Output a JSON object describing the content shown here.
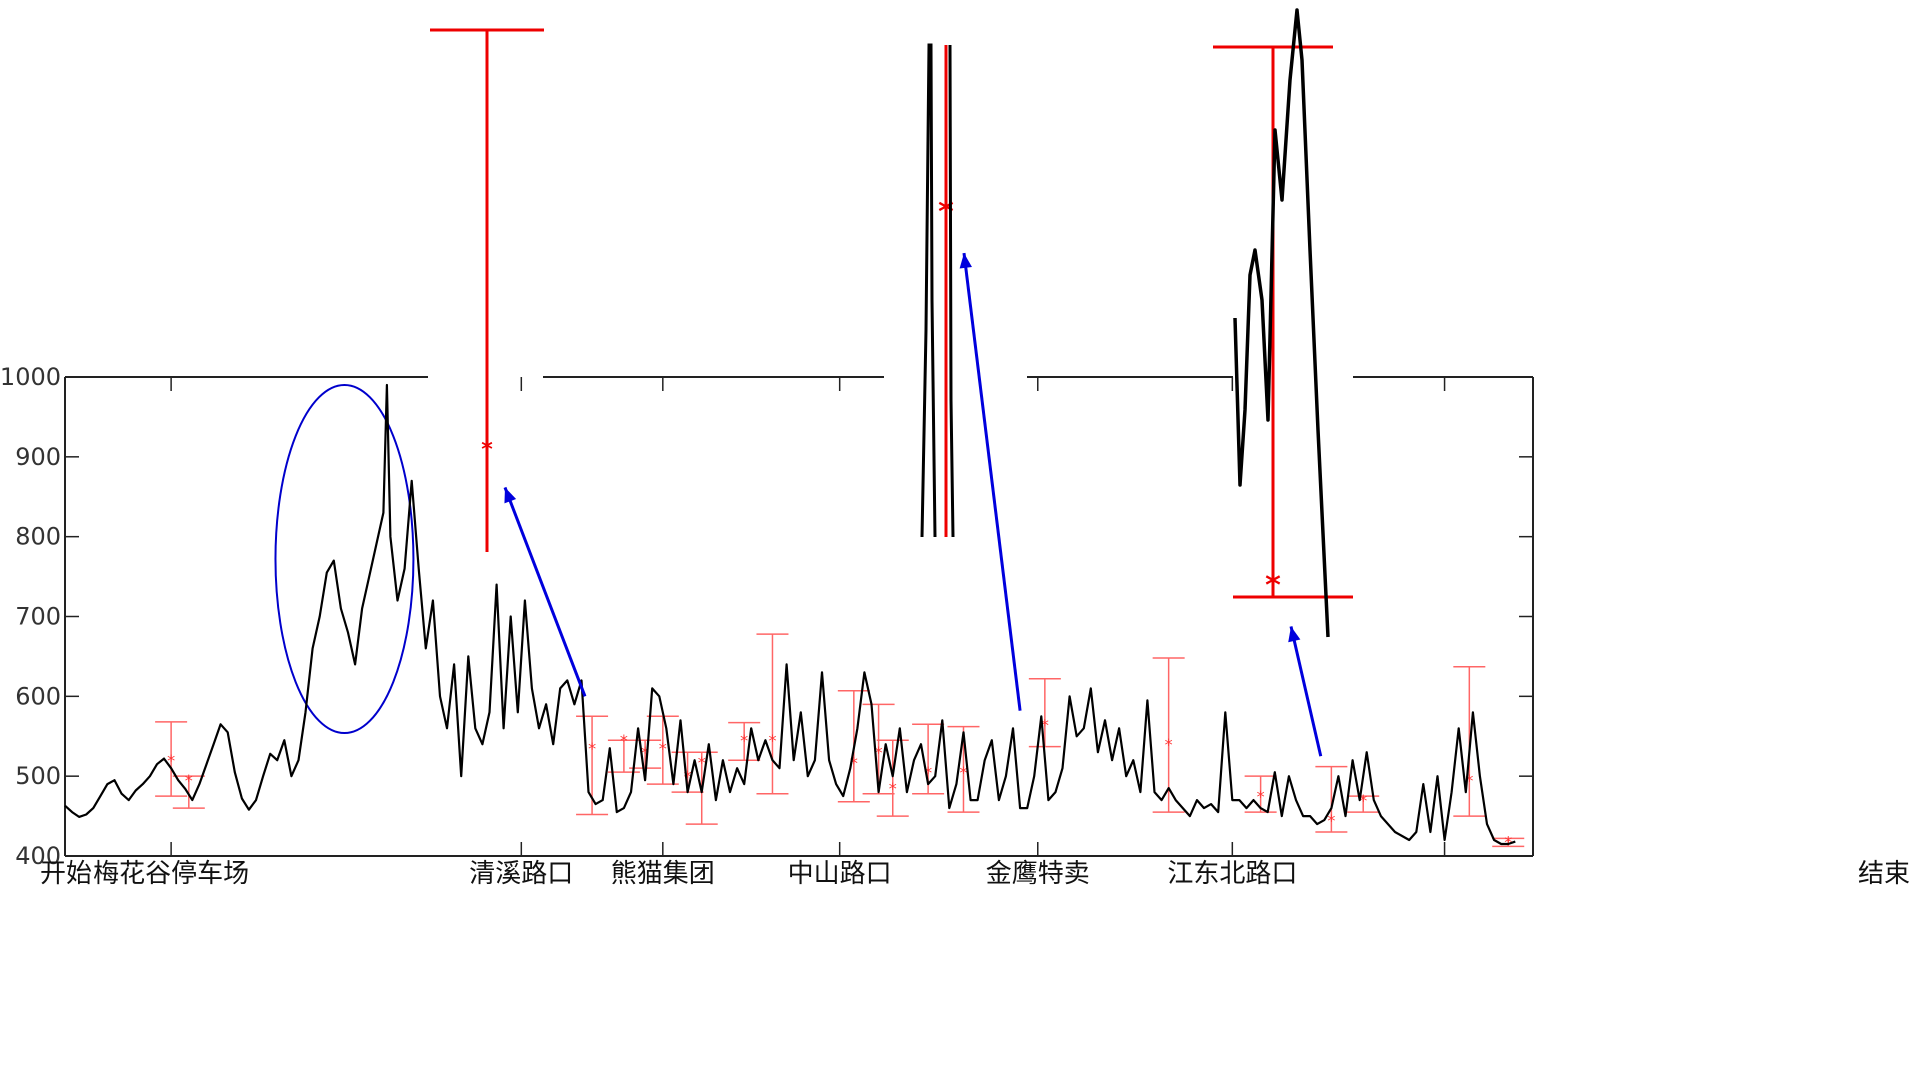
{
  "chart_data": {
    "type": "line",
    "title": "",
    "xlabel": "",
    "ylabel": "",
    "ylim": [
      400,
      1000
    ],
    "yticks": [
      "400",
      "500",
      "600",
      "700",
      "800",
      "900",
      "1000"
    ],
    "categories": [
      "开始",
      "梅花谷停车场",
      "清溪路口",
      "熊猫集团",
      "中山路口",
      "金鹰特卖",
      "江东北路口",
      "结束"
    ],
    "grid": false,
    "series": [
      {
        "name": "",
        "color": "#000000",
        "points": [
          [
            0,
            463
          ],
          [
            0.2,
            455
          ],
          [
            0.4,
            449
          ],
          [
            0.6,
            452
          ],
          [
            0.8,
            460
          ],
          [
            1.0,
            475
          ],
          [
            1.2,
            490
          ],
          [
            1.4,
            495
          ],
          [
            1.6,
            478
          ],
          [
            1.8,
            470
          ],
          [
            2.0,
            482
          ],
          [
            2.2,
            490
          ],
          [
            2.4,
            500
          ],
          [
            2.6,
            515
          ],
          [
            2.8,
            522
          ],
          [
            3.0,
            510
          ],
          [
            3.2,
            495
          ],
          [
            3.4,
            484
          ],
          [
            3.6,
            470
          ],
          [
            3.8,
            490
          ],
          [
            4.0,
            515
          ],
          [
            4.2,
            540
          ],
          [
            4.4,
            565
          ],
          [
            4.6,
            555
          ],
          [
            4.8,
            505
          ],
          [
            5.0,
            472
          ],
          [
            5.2,
            458
          ],
          [
            5.4,
            470
          ],
          [
            5.6,
            500
          ],
          [
            5.8,
            528
          ],
          [
            6.0,
            520
          ],
          [
            6.2,
            545
          ],
          [
            6.4,
            500
          ],
          [
            6.6,
            520
          ],
          [
            6.8,
            580
          ],
          [
            7.0,
            660
          ],
          [
            7.2,
            700
          ],
          [
            7.4,
            755
          ],
          [
            7.6,
            770
          ],
          [
            7.8,
            710
          ],
          [
            8.0,
            680
          ],
          [
            8.2,
            640
          ],
          [
            8.4,
            710
          ],
          [
            8.6,
            750
          ],
          [
            8.8,
            790
          ],
          [
            9.0,
            830
          ],
          [
            9.1,
            990
          ],
          [
            9.2,
            800
          ],
          [
            9.4,
            720
          ],
          [
            9.6,
            760
          ],
          [
            9.8,
            870
          ],
          [
            10.0,
            760
          ],
          [
            10.2,
            660
          ],
          [
            10.4,
            720
          ],
          [
            10.6,
            600
          ],
          [
            10.8,
            560
          ],
          [
            11.0,
            640
          ],
          [
            11.2,
            500
          ],
          [
            11.4,
            650
          ],
          [
            11.6,
            560
          ],
          [
            11.8,
            540
          ],
          [
            12.0,
            580
          ],
          [
            12.2,
            740
          ],
          [
            12.4,
            560
          ],
          [
            12.6,
            700
          ],
          [
            12.8,
            580
          ],
          [
            13.0,
            720
          ],
          [
            13.2,
            610
          ],
          [
            13.4,
            560
          ],
          [
            13.6,
            590
          ],
          [
            13.8,
            540
          ],
          [
            14.0,
            610
          ],
          [
            14.2,
            620
          ],
          [
            14.4,
            590
          ],
          [
            14.6,
            620
          ],
          [
            14.8,
            480
          ],
          [
            15.0,
            465
          ],
          [
            15.2,
            470
          ],
          [
            15.4,
            535
          ],
          [
            15.6,
            455
          ],
          [
            15.8,
            460
          ],
          [
            16.0,
            480
          ],
          [
            16.2,
            560
          ],
          [
            16.4,
            495
          ],
          [
            16.6,
            610
          ],
          [
            16.8,
            600
          ],
          [
            17.0,
            560
          ],
          [
            17.2,
            490
          ],
          [
            17.4,
            570
          ],
          [
            17.6,
            480
          ],
          [
            17.8,
            520
          ],
          [
            18.0,
            480
          ],
          [
            18.2,
            540
          ],
          [
            18.4,
            470
          ],
          [
            18.6,
            520
          ],
          [
            18.8,
            480
          ],
          [
            19.0,
            510
          ],
          [
            19.2,
            490
          ],
          [
            19.4,
            560
          ],
          [
            19.6,
            520
          ],
          [
            19.8,
            545
          ],
          [
            20.0,
            520
          ],
          [
            20.2,
            510
          ],
          [
            20.4,
            640
          ],
          [
            20.6,
            520
          ],
          [
            20.8,
            580
          ],
          [
            21.0,
            500
          ],
          [
            21.2,
            520
          ],
          [
            21.4,
            630
          ],
          [
            21.6,
            520
          ],
          [
            21.8,
            490
          ],
          [
            22.0,
            475
          ],
          [
            22.2,
            510
          ],
          [
            22.4,
            560
          ],
          [
            22.6,
            630
          ],
          [
            22.8,
            590
          ],
          [
            23.0,
            480
          ],
          [
            23.2,
            540
          ],
          [
            23.4,
            500
          ],
          [
            23.6,
            560
          ],
          [
            23.8,
            480
          ],
          [
            24.0,
            520
          ],
          [
            24.2,
            540
          ],
          [
            24.4,
            490
          ],
          [
            24.6,
            500
          ],
          [
            24.8,
            570
          ],
          [
            25.0,
            460
          ],
          [
            25.2,
            490
          ],
          [
            25.4,
            555
          ],
          [
            25.6,
            470
          ],
          [
            25.8,
            470
          ],
          [
            26.0,
            520
          ],
          [
            26.2,
            545
          ],
          [
            26.4,
            470
          ],
          [
            26.6,
            500
          ],
          [
            26.8,
            560
          ],
          [
            27.0,
            460
          ],
          [
            27.2,
            460
          ],
          [
            27.4,
            500
          ],
          [
            27.6,
            575
          ],
          [
            27.8,
            470
          ],
          [
            28.0,
            480
          ],
          [
            28.2,
            510
          ],
          [
            28.4,
            600
          ],
          [
            28.6,
            550
          ],
          [
            28.8,
            560
          ],
          [
            29.0,
            610
          ],
          [
            29.2,
            530
          ],
          [
            29.4,
            570
          ],
          [
            29.6,
            520
          ],
          [
            29.8,
            560
          ],
          [
            30.0,
            500
          ],
          [
            30.2,
            520
          ],
          [
            30.4,
            480
          ],
          [
            30.6,
            595
          ],
          [
            30.8,
            480
          ],
          [
            31.0,
            470
          ],
          [
            31.2,
            485
          ],
          [
            31.4,
            470
          ],
          [
            31.6,
            460
          ],
          [
            31.8,
            450
          ],
          [
            32.0,
            470
          ],
          [
            32.2,
            460
          ],
          [
            32.4,
            465
          ],
          [
            32.6,
            455
          ],
          [
            32.8,
            580
          ],
          [
            33.0,
            470
          ],
          [
            33.2,
            470
          ],
          [
            33.4,
            460
          ],
          [
            33.6,
            470
          ],
          [
            33.8,
            460
          ],
          [
            34.0,
            455
          ],
          [
            34.2,
            505
          ],
          [
            34.4,
            450
          ],
          [
            34.6,
            500
          ],
          [
            34.8,
            470
          ],
          [
            35.0,
            450
          ],
          [
            35.2,
            450
          ],
          [
            35.4,
            440
          ],
          [
            35.6,
            445
          ],
          [
            35.8,
            460
          ],
          [
            36.0,
            500
          ],
          [
            36.2,
            450
          ],
          [
            36.4,
            520
          ],
          [
            36.6,
            470
          ],
          [
            36.8,
            530
          ],
          [
            37.0,
            470
          ],
          [
            37.2,
            450
          ],
          [
            37.4,
            440
          ],
          [
            37.6,
            430
          ],
          [
            37.8,
            425
          ],
          [
            38.0,
            420
          ],
          [
            38.2,
            430
          ],
          [
            38.4,
            490
          ],
          [
            38.6,
            430
          ],
          [
            38.8,
            500
          ],
          [
            39.0,
            420
          ],
          [
            39.2,
            480
          ],
          [
            39.4,
            560
          ],
          [
            39.6,
            480
          ],
          [
            39.8,
            580
          ],
          [
            40.0,
            500
          ],
          [
            40.2,
            440
          ],
          [
            40.4,
            420
          ],
          [
            40.6,
            415
          ],
          [
            40.8,
            415
          ],
          [
            41.0,
            418
          ]
        ]
      }
    ],
    "error_bars": [
      {
        "x": 3.0,
        "y": 520,
        "low": 475,
        "high": 568
      },
      {
        "x": 3.5,
        "y": 495,
        "low": 460,
        "high": 500
      },
      {
        "x": 14.9,
        "y": 535,
        "low": 452,
        "high": 575
      },
      {
        "x": 15.8,
        "y": 545,
        "low": 505,
        "high": 545
      },
      {
        "x": 16.4,
        "y": 530,
        "low": 510,
        "high": 545
      },
      {
        "x": 16.9,
        "y": 535,
        "low": 490,
        "high": 575
      },
      {
        "x": 17.6,
        "y": 500,
        "low": 480,
        "high": 530
      },
      {
        "x": 18.0,
        "y": 518,
        "low": 440,
        "high": 530
      },
      {
        "x": 19.2,
        "y": 545,
        "low": 520,
        "high": 567
      },
      {
        "x": 20.0,
        "y": 545,
        "low": 478,
        "high": 678
      },
      {
        "x": 22.3,
        "y": 517,
        "low": 468,
        "high": 607
      },
      {
        "x": 23.0,
        "y": 530,
        "low": 478,
        "high": 590
      },
      {
        "x": 23.4,
        "y": 485,
        "low": 450,
        "high": 545
      },
      {
        "x": 24.4,
        "y": 505,
        "low": 478,
        "high": 565
      },
      {
        "x": 25.4,
        "y": 505,
        "low": 455,
        "high": 562
      },
      {
        "x": 27.7,
        "y": 565,
        "low": 537,
        "high": 622
      },
      {
        "x": 31.2,
        "y": 540,
        "low": 455,
        "high": 648
      },
      {
        "x": 33.8,
        "y": 475,
        "low": 455,
        "high": 500
      },
      {
        "x": 35.8,
        "y": 445,
        "low": 430,
        "high": 512
      },
      {
        "x": 36.7,
        "y": 470,
        "low": 455,
        "high": 475
      },
      {
        "x": 39.7,
        "y": 495,
        "low": 450,
        "high": 637
      },
      {
        "x": 40.8,
        "y": 418,
        "low": 412,
        "high": 422
      }
    ],
    "highlight_ellipse": {
      "x_center": 7.9,
      "y_center": 772,
      "x_radius": 1.95,
      "y_radius": 218
    },
    "insets": [
      {
        "from_x": 14.7,
        "from_y": 600,
        "error_bar": {
          "y": 907,
          "low": 778,
          "high": 1422
        }
      },
      {
        "from_x": 27.0,
        "from_y": 582,
        "error_bar": {
          "y": 1195,
          "low": 800,
          "high": 1400
        }
      },
      {
        "from_x": 35.5,
        "from_y": 525,
        "error_bar": {
          "y": 735,
          "low": 722,
          "high": 1401
        }
      }
    ]
  }
}
